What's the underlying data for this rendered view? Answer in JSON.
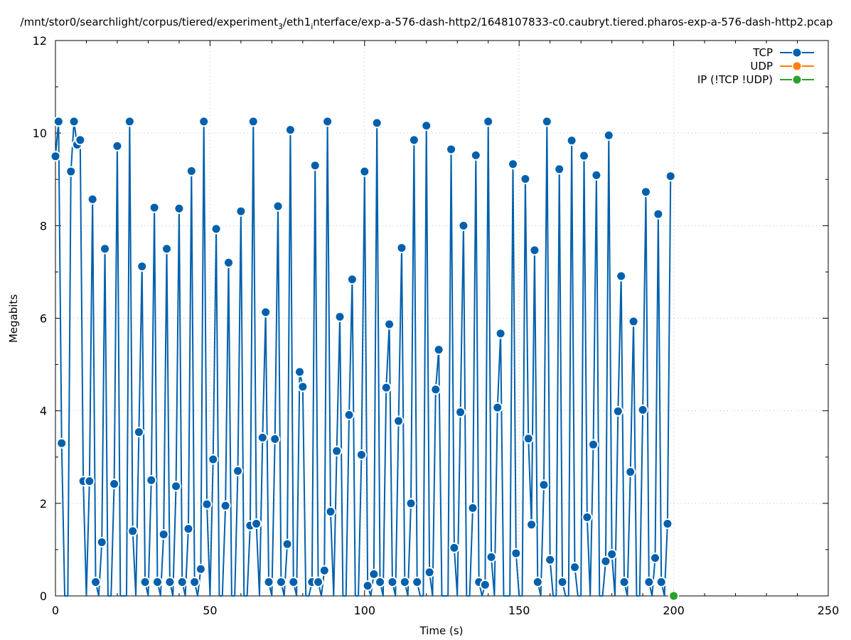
{
  "chart_data": {
    "type": "line",
    "title": "/mnt/stor0/searchlight/corpus/tiered/experiment_3/eth1_interface/exp-a-576-dash-http2/1648107833-c0.caubryt.tiered.pharos-exp-a-576-dash-http2.pcap",
    "title_parts": {
      "prefix": "/mnt/stor0/searchlight/corpus/tiered/experiment",
      "sub1": "3",
      "middle": "/eth1",
      "sub2": "i",
      "suffix": "nterface/exp-a-576-dash-http2/1648107833-c0.caubryt.tiered.pharos-exp-a-576-dash-http2.pcap"
    },
    "xlabel": "Time (s)",
    "ylabel": "Megabits",
    "xlim": [
      0,
      250
    ],
    "ylim": [
      0,
      12
    ],
    "xticks": [
      "0",
      "50",
      "100",
      "150",
      "200",
      "250"
    ],
    "yticks": [
      "0",
      "2",
      "4",
      "6",
      "8",
      "10",
      "12"
    ],
    "grid": true,
    "legend_position": "top-right",
    "series": [
      {
        "name": "TCP",
        "color": "#0060ad",
        "points": [
          [
            0,
            9.5
          ],
          [
            1,
            10.25
          ],
          [
            2,
            3.3
          ],
          [
            3,
            0
          ],
          [
            4,
            0
          ],
          [
            5,
            9.17
          ],
          [
            6,
            10.25
          ],
          [
            7,
            9.75
          ],
          [
            8,
            9.85
          ],
          [
            9,
            2.48
          ],
          [
            10,
            0
          ],
          [
            11,
            2.48
          ],
          [
            12,
            8.57
          ],
          [
            13,
            0.3
          ],
          [
            14,
            0
          ],
          [
            15,
            1.16
          ],
          [
            16,
            7.5
          ],
          [
            17,
            0
          ],
          [
            18,
            0
          ],
          [
            19,
            2.42
          ],
          [
            20,
            9.72
          ],
          [
            21,
            0
          ],
          [
            22,
            0
          ],
          [
            23,
            0
          ],
          [
            24,
            10.25
          ],
          [
            25,
            1.4
          ],
          [
            26,
            0
          ],
          [
            27,
            3.54
          ],
          [
            28,
            7.12
          ],
          [
            29,
            0.3
          ],
          [
            30,
            0
          ],
          [
            31,
            2.5
          ],
          [
            32,
            8.39
          ],
          [
            33,
            0.3
          ],
          [
            34,
            0
          ],
          [
            35,
            1.33
          ],
          [
            36,
            7.5
          ],
          [
            37,
            0.3
          ],
          [
            38,
            0
          ],
          [
            39,
            2.37
          ],
          [
            40,
            8.37
          ],
          [
            41,
            0.3
          ],
          [
            42,
            0
          ],
          [
            43,
            1.45
          ],
          [
            44,
            9.18
          ],
          [
            45,
            0.3
          ],
          [
            46,
            0
          ],
          [
            47,
            0.58
          ],
          [
            48,
            10.25
          ],
          [
            49,
            1.98
          ],
          [
            50,
            0
          ],
          [
            51,
            2.95
          ],
          [
            52,
            7.93
          ],
          [
            53,
            0
          ],
          [
            54,
            0
          ],
          [
            55,
            1.95
          ],
          [
            56,
            7.2
          ],
          [
            57,
            0
          ],
          [
            58,
            0
          ],
          [
            59,
            2.7
          ],
          [
            60,
            8.31
          ],
          [
            61,
            0
          ],
          [
            62,
            0
          ],
          [
            63,
            1.52
          ],
          [
            64,
            10.25
          ],
          [
            65,
            1.56
          ],
          [
            66,
            0
          ],
          [
            67,
            3.42
          ],
          [
            68,
            6.13
          ],
          [
            69,
            0.3
          ],
          [
            70,
            0
          ],
          [
            71,
            3.39
          ],
          [
            72,
            8.42
          ],
          [
            73,
            0.3
          ],
          [
            74,
            0
          ],
          [
            75,
            1.12
          ],
          [
            76,
            10.07
          ],
          [
            77,
            0.3
          ],
          [
            78,
            0
          ],
          [
            79,
            4.84
          ],
          [
            80,
            4.52
          ],
          [
            81,
            0
          ],
          [
            82,
            0
          ],
          [
            83,
            0.3
          ],
          [
            84,
            9.3
          ],
          [
            85,
            0.3
          ],
          [
            86,
            0
          ],
          [
            87,
            0.55
          ],
          [
            88,
            10.25
          ],
          [
            89,
            1.82
          ],
          [
            90,
            0
          ],
          [
            91,
            3.13
          ],
          [
            92,
            6.03
          ],
          [
            93,
            0
          ],
          [
            94,
            0
          ],
          [
            95,
            3.91
          ],
          [
            96,
            6.84
          ],
          [
            97,
            0
          ],
          [
            98,
            0
          ],
          [
            99,
            3.05
          ],
          [
            100,
            9.17
          ],
          [
            101,
            0.22
          ],
          [
            102,
            0
          ],
          [
            103,
            0.47
          ],
          [
            104,
            10.22
          ],
          [
            105,
            0.3
          ],
          [
            106,
            0
          ],
          [
            107,
            4.5
          ],
          [
            108,
            5.87
          ],
          [
            109,
            0.3
          ],
          [
            110,
            0
          ],
          [
            111,
            3.78
          ],
          [
            112,
            7.52
          ],
          [
            113,
            0.3
          ],
          [
            114,
            0
          ],
          [
            115,
            2.0
          ],
          [
            116,
            9.85
          ],
          [
            117,
            0.3
          ],
          [
            118,
            0
          ],
          [
            119,
            0
          ],
          [
            120,
            10.16
          ],
          [
            121,
            0.51
          ],
          [
            122,
            0
          ],
          [
            123,
            4.46
          ],
          [
            124,
            5.32
          ],
          [
            125,
            0
          ],
          [
            126,
            0
          ],
          [
            127,
            0
          ],
          [
            128,
            9.65
          ],
          [
            129,
            1.04
          ],
          [
            130,
            0
          ],
          [
            131,
            3.97
          ],
          [
            132,
            8.0
          ],
          [
            133,
            0
          ],
          [
            134,
            0
          ],
          [
            135,
            1.9
          ],
          [
            136,
            9.52
          ],
          [
            137,
            0.3
          ],
          [
            138,
            0
          ],
          [
            139,
            0.24
          ],
          [
            140,
            10.25
          ],
          [
            141,
            0.84
          ],
          [
            142,
            0
          ],
          [
            143,
            4.07
          ],
          [
            144,
            5.67
          ],
          [
            145,
            0
          ],
          [
            146,
            0
          ],
          [
            147,
            0
          ],
          [
            148,
            9.33
          ],
          [
            149,
            0.92
          ],
          [
            150,
            0
          ],
          [
            151,
            0
          ],
          [
            152,
            9.01
          ],
          [
            153,
            3.4
          ],
          [
            154,
            1.54
          ],
          [
            155,
            7.47
          ],
          [
            156,
            0.3
          ],
          [
            157,
            0
          ],
          [
            158,
            2.4
          ],
          [
            159,
            10.25
          ],
          [
            160,
            0.78
          ],
          [
            161,
            0
          ],
          [
            162,
            0
          ],
          [
            163,
            9.22
          ],
          [
            164,
            0.3
          ],
          [
            165,
            0
          ],
          [
            166,
            0
          ],
          [
            167,
            9.84
          ],
          [
            168,
            0.62
          ],
          [
            169,
            0
          ],
          [
            170,
            0
          ],
          [
            171,
            9.51
          ],
          [
            172,
            1.7
          ],
          [
            173,
            0
          ],
          [
            174,
            3.27
          ],
          [
            175,
            9.09
          ],
          [
            176,
            0
          ],
          [
            177,
            0
          ],
          [
            178,
            0.75
          ],
          [
            179,
            9.95
          ],
          [
            180,
            0.9
          ],
          [
            181,
            0
          ],
          [
            182,
            3.99
          ],
          [
            183,
            6.91
          ],
          [
            184,
            0.3
          ],
          [
            185,
            0
          ],
          [
            186,
            2.68
          ],
          [
            187,
            5.93
          ],
          [
            188,
            0
          ],
          [
            189,
            0
          ],
          [
            190,
            4.02
          ],
          [
            191,
            8.73
          ],
          [
            192,
            0.3
          ],
          [
            193,
            0
          ],
          [
            194,
            0.82
          ],
          [
            195,
            8.25
          ],
          [
            196,
            0.3
          ],
          [
            197,
            0
          ],
          [
            198,
            1.56
          ],
          [
            199,
            9.07
          ]
        ]
      },
      {
        "name": "UDP",
        "color": "#ff7f0e",
        "points": []
      },
      {
        "name": "IP (!TCP  !UDP)",
        "color": "#2ca02c",
        "points": [
          [
            200,
            0
          ]
        ]
      }
    ]
  }
}
